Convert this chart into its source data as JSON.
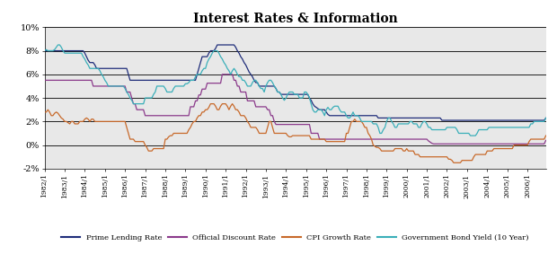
{
  "title": "Interest Rates & Information",
  "title_fontsize": 10,
  "legend_labels": [
    "Prime Lending Rate",
    "Official Discount Rate",
    "CPI Growth Rate",
    "Government Bond Yield (10 Year)"
  ],
  "line_colors": [
    "#1f2d7a",
    "#8b3a8b",
    "#c8692a",
    "#3aafb9"
  ],
  "ylim": [
    -2,
    10
  ],
  "yticks": [
    -2,
    0,
    2,
    4,
    6,
    8,
    10
  ],
  "ytick_labels": [
    "-2%",
    "0%",
    "2%",
    "4%",
    "6%",
    "8%",
    "10%"
  ],
  "xtick_labels": [
    "1982/1",
    "1983/1",
    "1984/1",
    "1985/1",
    "1986/1",
    "1987/1",
    "1988/1",
    "1989/1",
    "1990/1",
    "1991/1",
    "1992/1",
    "1993/1",
    "1994/1",
    "1995/1",
    "1996/1",
    "1997/1",
    "1998/1",
    "1999/1",
    "2000/1",
    "2001/1",
    "2002/1",
    "2003/1",
    "2004/1",
    "2005/1",
    "2006/1"
  ],
  "background_color": "#ffffff",
  "plot_bg_color": "#e8e8e8",
  "line_width": 0.9,
  "grid_color": "#000000",
  "grid_linewidth": 0.6
}
